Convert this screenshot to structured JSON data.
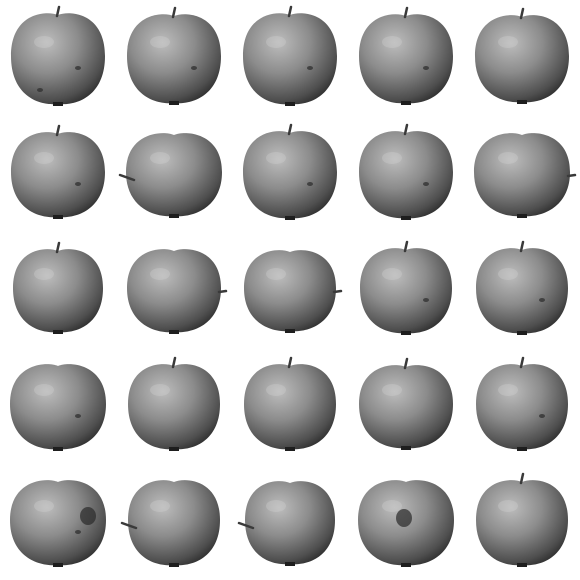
{
  "background": "#ffffff",
  "grid": {
    "rows": 5,
    "cols": 5
  },
  "apple_tone": "#8c8c8c",
  "apples": [
    {
      "stem": "top",
      "spots": 2,
      "calyx": false
    },
    {
      "stem": "top",
      "spots": 1,
      "calyx": false
    },
    {
      "stem": "top",
      "spots": 1,
      "calyx": false
    },
    {
      "stem": "top",
      "spots": 1,
      "calyx": false
    },
    {
      "stem": "top",
      "spots": 0,
      "calyx": false
    },
    {
      "stem": "top",
      "spots": 1,
      "calyx": false
    },
    {
      "stem": "left",
      "spots": 0,
      "calyx": false
    },
    {
      "stem": "top",
      "spots": 1,
      "calyx": false
    },
    {
      "stem": "top",
      "spots": 1,
      "calyx": false
    },
    {
      "stem": "right",
      "spots": 0,
      "calyx": false
    },
    {
      "stem": "top",
      "spots": 0,
      "calyx": false
    },
    {
      "stem": "right",
      "spots": 0,
      "calyx": false
    },
    {
      "stem": "right",
      "spots": 0,
      "calyx": false
    },
    {
      "stem": "top",
      "spots": 1,
      "calyx": false
    },
    {
      "stem": "top",
      "spots": 1,
      "calyx": false
    },
    {
      "stem": "none",
      "spots": 1,
      "calyx": false
    },
    {
      "stem": "top",
      "spots": 0,
      "calyx": false
    },
    {
      "stem": "top",
      "spots": 0,
      "calyx": false
    },
    {
      "stem": "top",
      "spots": 0,
      "calyx": false
    },
    {
      "stem": "top",
      "spots": 1,
      "calyx": false
    },
    {
      "stem": "none",
      "spots": 1,
      "calyx": true
    },
    {
      "stem": "left",
      "spots": 0,
      "calyx": false
    },
    {
      "stem": "left",
      "spots": 0,
      "calyx": false
    },
    {
      "stem": "none",
      "spots": 0,
      "calyx": true
    },
    {
      "stem": "top",
      "spots": 0,
      "calyx": false
    }
  ]
}
